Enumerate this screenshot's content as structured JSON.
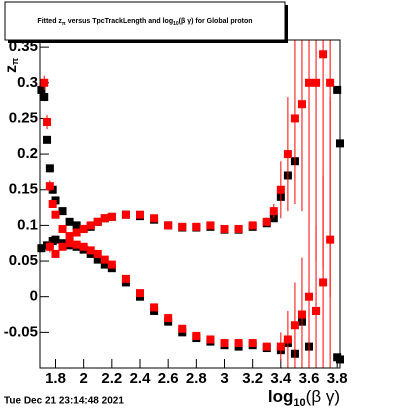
{
  "chart_data": {
    "type": "scatter",
    "title": [
      "Fitted z",
      "π",
      " versus TpcTrackLength and log",
      "10",
      "(β γ) for Global proton"
    ],
    "x_label": [
      "log",
      "10",
      "(β γ)"
    ],
    "y_label": [
      "z",
      "π"
    ],
    "footer": "Tue Dec 21 23:14:48 2021",
    "xlim": [
      1.69,
      3.82
    ],
    "ylim": [
      -0.1,
      0.36
    ],
    "xticks": [
      1.8,
      2,
      2.2,
      2.4,
      2.6,
      2.8,
      3,
      3.2,
      3.4,
      3.6,
      3.8
    ],
    "yticks": [
      -0.05,
      0,
      0.05,
      0.1,
      0.15,
      0.2,
      0.25,
      0.3,
      0.35
    ],
    "marker_size": 8,
    "series": [
      {
        "color": "#000000",
        "x": [
          1.7,
          1.72,
          1.74,
          1.76,
          1.78,
          1.8,
          1.85,
          1.9,
          1.95,
          2.0,
          2.05,
          2.1,
          2.15,
          2.2,
          2.3,
          2.4,
          2.5,
          2.6,
          2.7,
          2.8,
          2.9,
          3.0,
          3.1,
          3.2,
          3.3,
          3.35,
          3.4,
          3.45,
          3.5,
          3.8,
          3.82
        ],
        "values": [
          0.29,
          0.28,
          0.22,
          0.18,
          0.15,
          0.135,
          0.12,
          0.105,
          0.1,
          0.095,
          0.098,
          0.105,
          0.11,
          0.112,
          0.115,
          0.113,
          0.108,
          0.1,
          0.097,
          0.097,
          0.098,
          0.094,
          0.094,
          0.098,
          0.103,
          0.11,
          0.14,
          0.17,
          0.19,
          0.29,
          0.215
        ]
      },
      {
        "color": "#000000",
        "x": [
          1.7,
          1.74,
          1.78,
          1.8,
          1.85,
          1.9,
          1.95,
          2.0,
          2.05,
          2.1,
          2.15,
          2.2,
          2.3,
          2.4,
          2.5,
          2.6,
          2.7,
          2.8,
          2.9,
          3.0,
          3.1,
          3.2,
          3.3,
          3.4,
          3.45,
          3.5,
          3.55,
          3.6,
          3.65,
          3.8,
          3.82
        ],
        "values": [
          0.068,
          0.072,
          0.078,
          0.08,
          0.075,
          0.072,
          0.07,
          0.066,
          0.06,
          0.052,
          0.045,
          0.04,
          0.02,
          0.0,
          -0.02,
          -0.035,
          -0.05,
          -0.058,
          -0.063,
          -0.068,
          -0.07,
          -0.068,
          -0.072,
          -0.075,
          -0.065,
          -0.08,
          -0.035,
          -0.07,
          -0.02,
          -0.085,
          -0.088
        ]
      },
      {
        "color": "#ff0000",
        "x": [
          1.72,
          1.74,
          1.76,
          1.78,
          1.8,
          1.85,
          1.9,
          1.95,
          2.0,
          2.05,
          2.1,
          2.15,
          2.2,
          2.3,
          2.4,
          2.5,
          2.6,
          2.7,
          2.8,
          2.9,
          3.0,
          3.1,
          3.2,
          3.3,
          3.35,
          3.4,
          3.45,
          3.5,
          3.55,
          3.6,
          3.65,
          3.7,
          3.75
        ],
        "values": [
          0.3,
          0.245,
          0.155,
          0.13,
          0.115,
          0.095,
          0.085,
          0.09,
          0.095,
          0.1,
          0.105,
          0.11,
          0.112,
          0.115,
          0.115,
          0.11,
          0.1,
          0.098,
          0.098,
          0.1,
          0.095,
          0.095,
          0.1,
          0.105,
          0.12,
          0.15,
          0.2,
          0.25,
          0.27,
          0.3,
          0.3,
          0.34,
          0.3
        ],
        "errors": [
          0.01,
          0.01,
          0.008,
          0.005,
          0.004,
          0.003,
          0.003,
          0.003,
          0.003,
          0.003,
          0.003,
          0.003,
          0.003,
          0.003,
          0.003,
          0.003,
          0.003,
          0.003,
          0.003,
          0.003,
          0.003,
          0.003,
          0.004,
          0.006,
          0.01,
          0.04,
          0.08,
          0.12,
          0.15,
          0.2,
          0.25,
          0.3,
          0.3
        ]
      },
      {
        "color": "#ff0000",
        "x": [
          1.76,
          1.8,
          1.85,
          1.9,
          1.95,
          2.0,
          2.05,
          2.1,
          2.15,
          2.2,
          2.3,
          2.4,
          2.5,
          2.6,
          2.7,
          2.8,
          2.9,
          3.0,
          3.1,
          3.2,
          3.3,
          3.4,
          3.45,
          3.5,
          3.55,
          3.6,
          3.65,
          3.7,
          3.75
        ],
        "values": [
          0.07,
          0.06,
          0.07,
          0.075,
          0.073,
          0.07,
          0.065,
          0.06,
          0.052,
          0.045,
          0.025,
          0.005,
          -0.015,
          -0.03,
          -0.045,
          -0.055,
          -0.06,
          -0.065,
          -0.065,
          -0.065,
          -0.07,
          -0.07,
          -0.06,
          -0.04,
          -0.025,
          0.0,
          -0.02,
          0.02,
          0.08
        ],
        "errors": [
          0.008,
          0.005,
          0.004,
          0.003,
          0.003,
          0.003,
          0.003,
          0.003,
          0.003,
          0.003,
          0.003,
          0.003,
          0.003,
          0.003,
          0.003,
          0.003,
          0.003,
          0.003,
          0.003,
          0.003,
          0.005,
          0.02,
          0.04,
          0.06,
          0.08,
          0.1,
          0.12,
          0.15,
          0.2
        ]
      }
    ]
  }
}
